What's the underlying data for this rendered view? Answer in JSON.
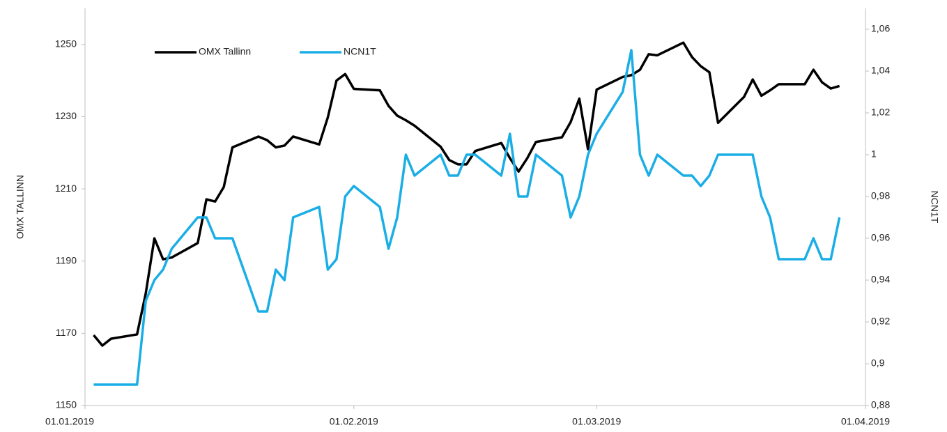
{
  "chart_data": {
    "type": "line",
    "y_label": "OMX TALLINN",
    "y2_label": "NCN1T",
    "legend": "top-left",
    "x": [
      "2019-01-02",
      "2019-01-03",
      "2019-01-04",
      "2019-01-07",
      "2019-01-08",
      "2019-01-09",
      "2019-01-10",
      "2019-01-11",
      "2019-01-14",
      "2019-01-15",
      "2019-01-16",
      "2019-01-17",
      "2019-01-18",
      "2019-01-21",
      "2019-01-22",
      "2019-01-23",
      "2019-01-24",
      "2019-01-25",
      "2019-01-28",
      "2019-01-29",
      "2019-01-30",
      "2019-01-31",
      "2019-02-01",
      "2019-02-04",
      "2019-02-05",
      "2019-02-06",
      "2019-02-07",
      "2019-02-08",
      "2019-02-11",
      "2019-02-12",
      "2019-02-13",
      "2019-02-14",
      "2019-02-15",
      "2019-02-18",
      "2019-02-19",
      "2019-02-20",
      "2019-02-21",
      "2019-02-22",
      "2019-02-25",
      "2019-02-26",
      "2019-02-27",
      "2019-02-28",
      "2019-03-01",
      "2019-03-04",
      "2019-03-05",
      "2019-03-06",
      "2019-03-07",
      "2019-03-08",
      "2019-03-11",
      "2019-03-12",
      "2019-03-13",
      "2019-03-14",
      "2019-03-15",
      "2019-03-18",
      "2019-03-19",
      "2019-03-20",
      "2019-03-21",
      "2019-03-22",
      "2019-03-25",
      "2019-03-26",
      "2019-03-27",
      "2019-03-28",
      "2019-03-29"
    ],
    "series": [
      {
        "name": "OMX Tallinn",
        "color": "#000000",
        "axis": "y",
        "values": [
          1169.5,
          1166.6,
          1168.5,
          1169.7,
          1181,
          1196.3,
          1190.5,
          1191,
          1195,
          1207.1,
          1206.5,
          1210.5,
          1221.5,
          1224.5,
          1223.5,
          1221.5,
          1222,
          1224.5,
          1222.3,
          1229.8,
          1240,
          1241.8,
          1237.7,
          1237.3,
          1233,
          1230.3,
          1229,
          1227.5,
          1221.7,
          1218,
          1216.8,
          1216.8,
          1220.5,
          1222.7,
          1218.5,
          1214.8,
          1218.5,
          1223,
          1224.3,
          1228.5,
          1235,
          1221,
          1237.5,
          1241,
          1241.5,
          1243,
          1247.3,
          1247,
          1250.5,
          1246.5,
          1244,
          1242.3,
          1228.3,
          1235.5,
          1240.3,
          1235.8,
          1237.3,
          1239,
          1239,
          1243,
          1239.5,
          1237.8,
          1238.5
        ]
      },
      {
        "name": "NCN1T",
        "color": "#1aaee6",
        "axis": "y2",
        "values": [
          0.89,
          0.89,
          0.89,
          0.89,
          0.93,
          0.94,
          0.945,
          0.955,
          0.97,
          0.97,
          0.96,
          0.96,
          0.96,
          0.925,
          0.925,
          0.945,
          0.94,
          0.97,
          0.975,
          0.945,
          0.95,
          0.98,
          0.985,
          0.975,
          0.955,
          0.97,
          1.0,
          0.99,
          1.0,
          0.99,
          0.99,
          1.0,
          1.0,
          0.99,
          1.01,
          0.98,
          0.98,
          1.0,
          0.99,
          0.97,
          0.98,
          1.0,
          1.01,
          1.03,
          1.05,
          1.0,
          0.99,
          1.0,
          0.99,
          0.99,
          0.985,
          0.99,
          1.0,
          1.0,
          1.0,
          0.98,
          0.97,
          0.95,
          0.95,
          0.96,
          0.95,
          0.95,
          0.97
        ]
      }
    ],
    "xlim": [
      "2019-01-01",
      "2019-04-01"
    ],
    "xticks": [
      {
        "value": "2019-01-01",
        "label": "01.01.2019"
      },
      {
        "value": "2019-02-01",
        "label": "01.02.2019"
      },
      {
        "value": "2019-03-01",
        "label": "01.03.2019"
      },
      {
        "value": "2019-04-01",
        "label": "01.04.2019"
      }
    ],
    "ylim": [
      1150,
      1260
    ],
    "yticks": [
      1150,
      1170,
      1190,
      1210,
      1230,
      1250
    ],
    "y2lim": [
      0.88,
      1.07
    ],
    "y2ticks": [
      {
        "value": 0.88,
        "label": "0,88"
      },
      {
        "value": 0.9,
        "label": "0,9"
      },
      {
        "value": 0.92,
        "label": "0,92"
      },
      {
        "value": 0.94,
        "label": "0,94"
      },
      {
        "value": 0.96,
        "label": "0,96"
      },
      {
        "value": 0.98,
        "label": "0,98"
      },
      1,
      {
        "value": 1.02,
        "label": "1,02"
      },
      {
        "value": 1.04,
        "label": "1,04"
      },
      {
        "value": 1.06,
        "label": "1,06"
      }
    ]
  }
}
